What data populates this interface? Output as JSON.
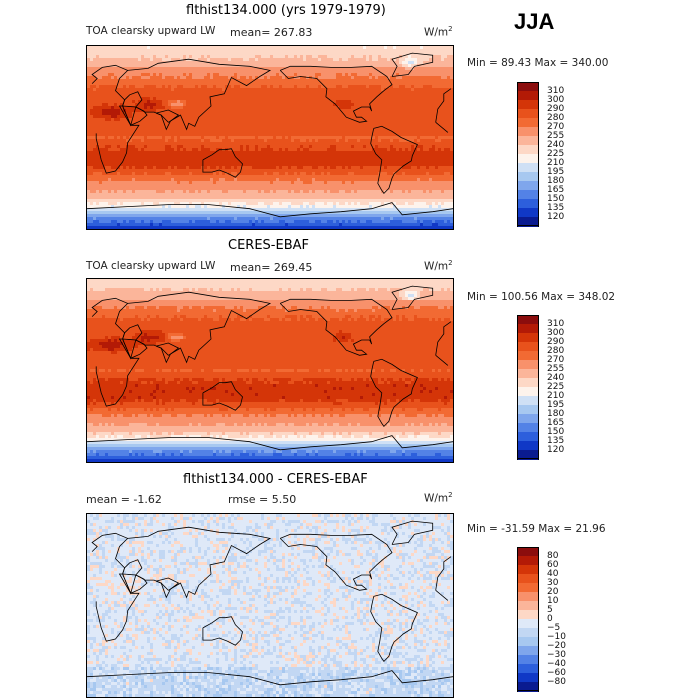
{
  "season": "JJA",
  "panels": [
    {
      "title": "flthist134.000 (yrs 1979-1979)",
      "left_label": "TOA clearsky upward LW",
      "stat_label": "mean= 267.83",
      "units_base": "W/m",
      "units_exp": "2",
      "minmax": "Min =  89.43 Max = 340.00",
      "kind": "abs"
    },
    {
      "title": "CERES-EBAF",
      "left_label": "TOA clearsky upward LW",
      "stat_label": "mean= 269.45",
      "units_base": "W/m",
      "units_exp": "2",
      "minmax": "Min = 100.56 Max = 348.02",
      "kind": "abs"
    },
    {
      "title": "flthist134.000 - CERES-EBAF",
      "left_label": "mean =  -1.62",
      "stat_label": "rmse =   5.50",
      "units_base": "W/m",
      "units_exp": "2",
      "minmax": "Min = -31.59 Max =  21.96",
      "kind": "diff"
    }
  ],
  "chart_data": [
    {
      "type": "heatmap",
      "title": "flthist134.000 (yrs 1979-1979)",
      "variable": "TOA clearsky upward LW",
      "units": "W/m2",
      "mean": 267.83,
      "min": 89.43,
      "max": 340.0,
      "colorbar_levels": [
        120,
        135,
        150,
        165,
        180,
        195,
        210,
        225,
        240,
        255,
        270,
        280,
        290,
        300,
        310
      ],
      "colorbar_labels": [
        "310",
        "300",
        "290",
        "280",
        "270",
        "255",
        "240",
        "225",
        "210",
        "195",
        "180",
        "165",
        "150",
        "135",
        "120"
      ]
    },
    {
      "type": "heatmap",
      "title": "CERES-EBAF",
      "variable": "TOA clearsky upward LW",
      "units": "W/m2",
      "mean": 269.45,
      "min": 100.56,
      "max": 348.02,
      "colorbar_levels": [
        120,
        135,
        150,
        165,
        180,
        195,
        210,
        225,
        240,
        255,
        270,
        280,
        290,
        300,
        310
      ],
      "colorbar_labels": [
        "310",
        "300",
        "290",
        "280",
        "270",
        "255",
        "240",
        "225",
        "210",
        "195",
        "180",
        "165",
        "150",
        "135",
        "120"
      ]
    },
    {
      "type": "heatmap",
      "title": "flthist134.000 - CERES-EBAF",
      "units": "W/m2",
      "mean": -1.62,
      "rmse": 5.5,
      "min": -31.59,
      "max": 21.96,
      "colorbar_levels": [
        -80,
        -60,
        -40,
        -30,
        -20,
        -10,
        -5,
        0,
        5,
        10,
        20,
        30,
        40,
        60,
        80
      ],
      "colorbar_labels": [
        "80",
        "60",
        "40",
        "30",
        "20",
        "10",
        "5",
        "0",
        "−5",
        "−10",
        "−20",
        "−30",
        "−40",
        "−60",
        "−80"
      ]
    }
  ],
  "colors": {
    "abs_scale": [
      "#8b0d0d",
      "#b31a06",
      "#d43508",
      "#e8521c",
      "#f26a33",
      "#f8916b",
      "#fbb59a",
      "#fdd8c6",
      "#fdf3ec",
      "#cfe0f5",
      "#a7c8f0",
      "#7fa6ec",
      "#5382e6",
      "#2d5fdc",
      "#1038c6",
      "#0a1b90"
    ],
    "diff_scale": [
      "#8b0d0d",
      "#b31a06",
      "#d43508",
      "#e8521c",
      "#f26a33",
      "#f8916b",
      "#fbb59a",
      "#fdd8c6",
      "#dfe9f8",
      "#c2d7f3",
      "#a7c8f0",
      "#7fa6ec",
      "#5382e6",
      "#2d5fdc",
      "#1038c6",
      "#0a1b90"
    ],
    "coast": "#000000"
  }
}
